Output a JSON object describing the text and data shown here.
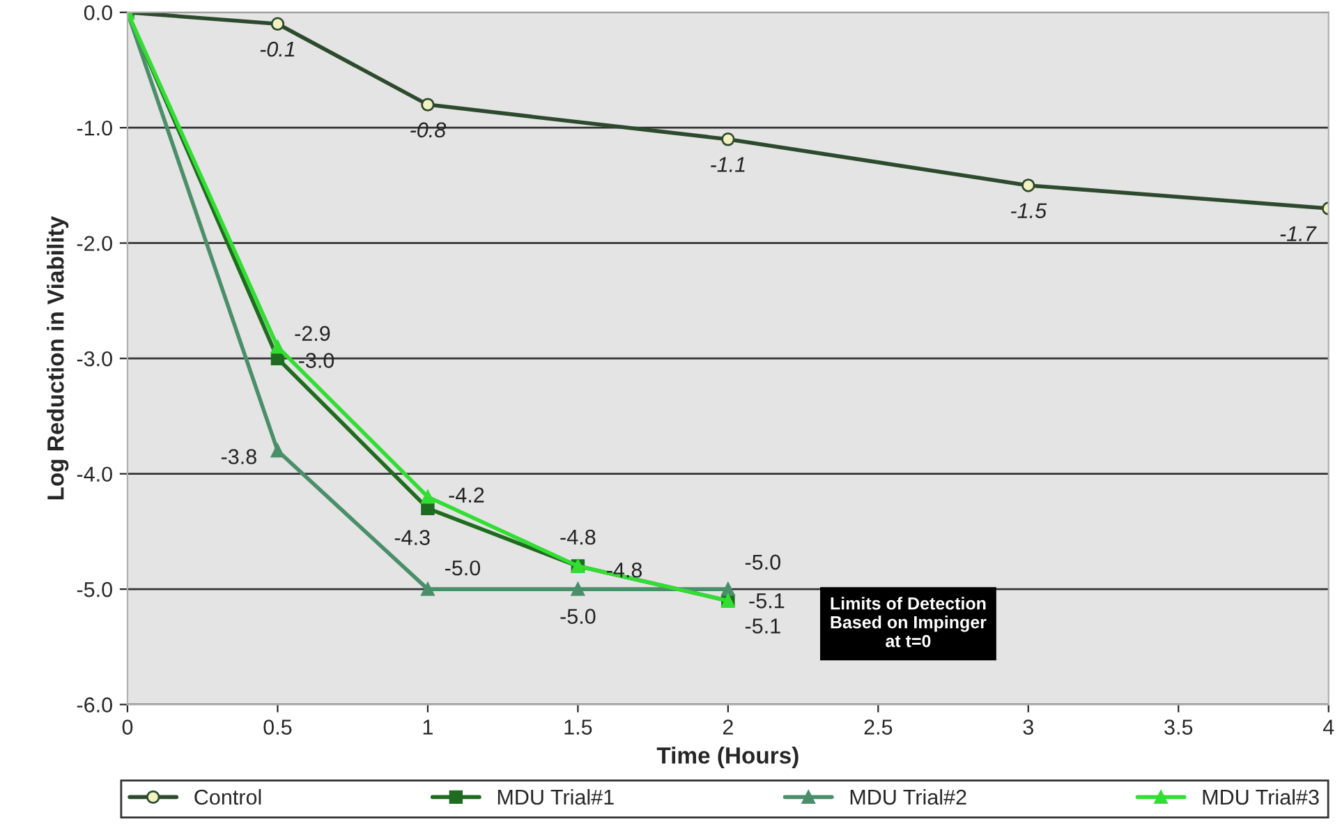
{
  "chart_data": {
    "type": "line",
    "xlabel": "Time (Hours)",
    "ylabel": "Log Reduction in Viability",
    "xlim": [
      0,
      4
    ],
    "ylim": [
      -6,
      0
    ],
    "xticks": [
      0,
      0.5,
      1,
      1.5,
      2,
      2.5,
      3,
      3.5,
      4
    ],
    "yticks": [
      {
        "value": -6,
        "label": "-6.0"
      },
      {
        "value": -5,
        "label": "-5.0"
      },
      {
        "value": -4,
        "label": "-4.0"
      },
      {
        "value": -3,
        "label": "-3.0"
      },
      {
        "value": -2,
        "label": "-2.0"
      },
      {
        "value": -1,
        "label": "-1.0"
      },
      {
        "value": 0,
        "label": "0.0"
      }
    ],
    "grid": "y",
    "legend": "bottom",
    "annotations": [
      "Limits of Detection\nBased on Impinger\nat t=0"
    ],
    "series": [
      {
        "name": "Control",
        "color": "#2e4a2e",
        "marker": "circle",
        "x": [
          0,
          0.5,
          1,
          2,
          3,
          4
        ],
        "values": [
          0,
          -0.1,
          -0.8,
          -1.1,
          -1.5,
          -1.7
        ],
        "value_labels": [
          null,
          "-0.1",
          "-0.8",
          "-1.1",
          "-1.5",
          "-1.7"
        ]
      },
      {
        "name": "MDU Trial#1",
        "color": "#1f6b1f",
        "marker": "square",
        "x": [
          0,
          0.5,
          1,
          1.5,
          2
        ],
        "values": [
          0,
          -3.0,
          -4.3,
          -4.8,
          -5.1
        ],
        "value_labels": [
          null,
          "-3.0",
          "-4.3",
          "-4.8",
          "-5.1"
        ]
      },
      {
        "name": "MDU Trial#2",
        "color": "#4a8f6a",
        "marker": "triangle",
        "x": [
          0,
          0.5,
          1,
          1.5,
          2
        ],
        "values": [
          0,
          -3.8,
          -5.0,
          -5.0,
          -5.0
        ],
        "value_labels": [
          null,
          "-3.8",
          "-5.0",
          "-5.0",
          "-5.0"
        ]
      },
      {
        "name": "MDU Trial#3",
        "color": "#33dd33",
        "marker": "triangle",
        "x": [
          0,
          0.5,
          1,
          1.5,
          2
        ],
        "values": [
          0,
          -2.9,
          -4.2,
          -4.8,
          -5.1
        ],
        "value_labels": [
          null,
          "-2.9",
          "-4.2",
          "-4.8",
          "-5.1"
        ]
      }
    ]
  }
}
